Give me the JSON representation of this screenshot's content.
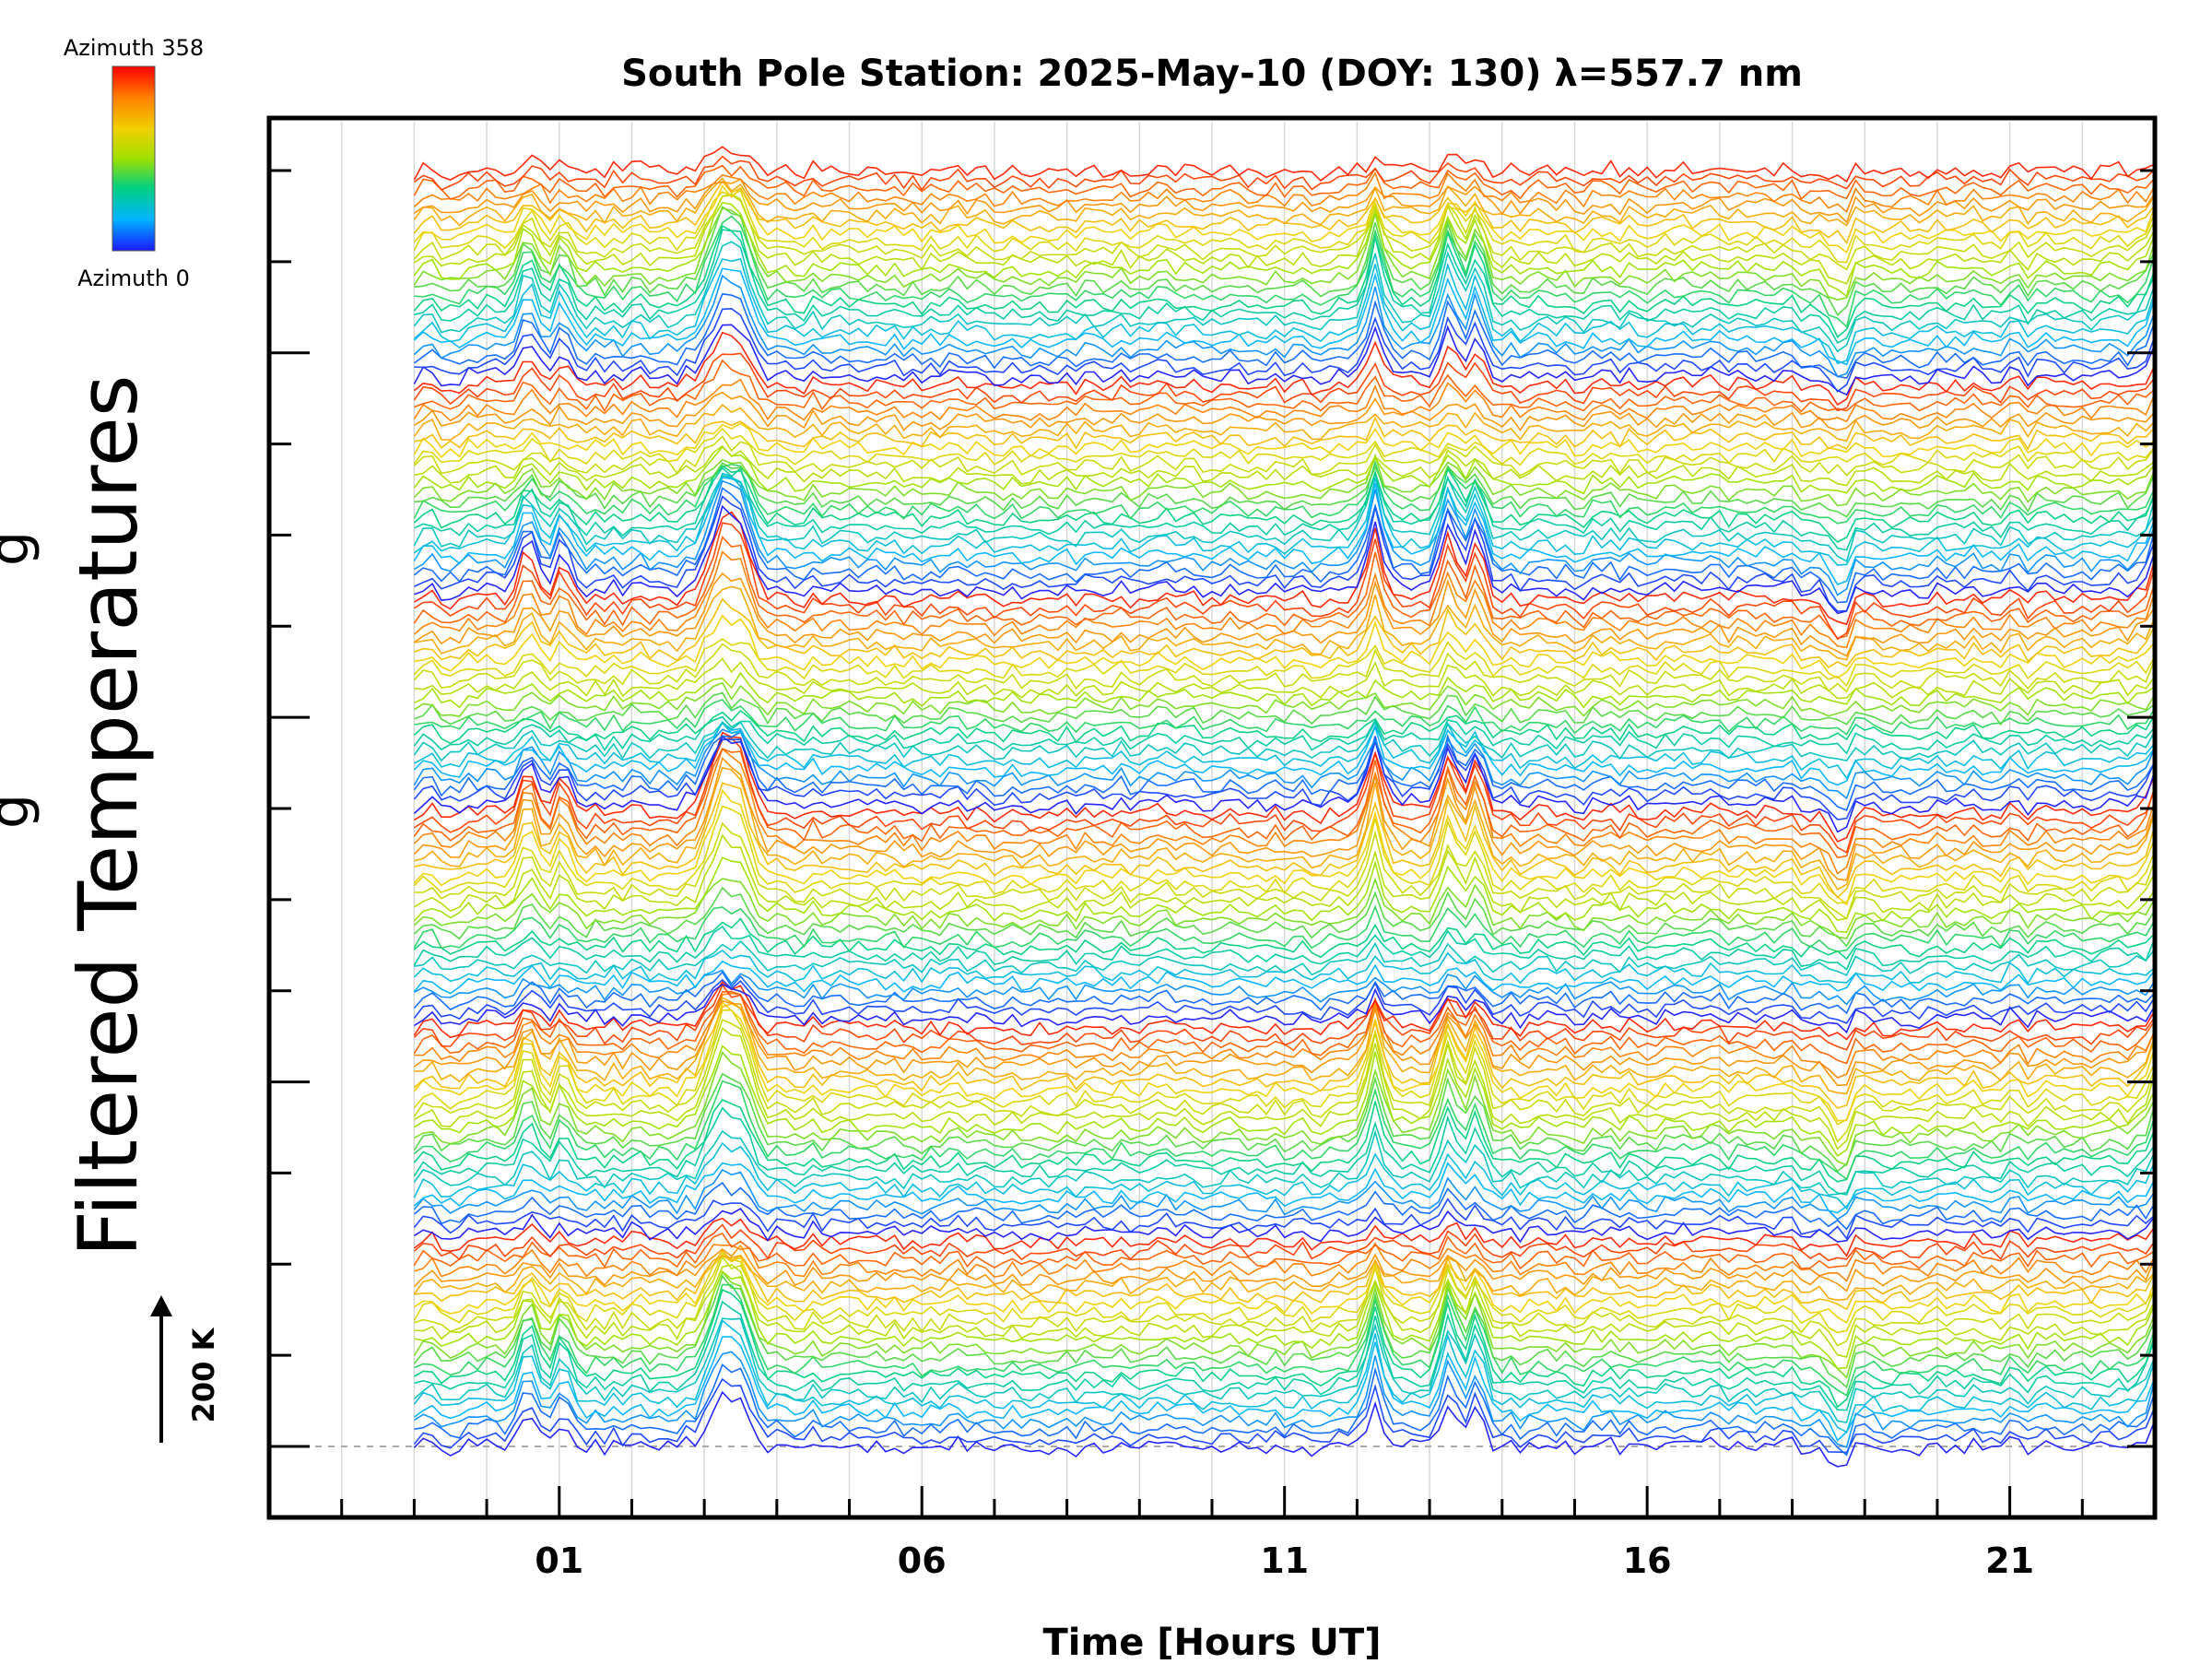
{
  "chart_data": {
    "type": "line",
    "title": "South Pole Station: 2025-May-10 (DOY: 130) λ=557.7 nm",
    "xlabel": "Time [Hours UT]",
    "ylabel": "Filtered Temperatures",
    "ylabel_partial_glyph": "g",
    "x_range_hours": [
      -3,
      23
    ],
    "data_x_range_hours": [
      -1,
      23
    ],
    "x_tick_values": [
      1,
      6,
      11,
      16,
      21
    ],
    "x_tick_labels": [
      "01",
      "06",
      "11",
      "16",
      "21"
    ],
    "x_minor_step_hours": 1,
    "num_traces": 144,
    "azimuth_range": [
      0,
      358
    ],
    "azimuth_color_cycles": 6,
    "scale_bar_label": "200 K",
    "colorbar": {
      "top_label": "Azimuth 358",
      "bottom_label": "Azimuth 0",
      "colors": [
        "#1a1aff",
        "#00b4ff",
        "#00d080",
        "#a0e000",
        "#f0d000",
        "#ff8000",
        "#ff0000"
      ]
    },
    "events": [
      {
        "center_hour": 0.55,
        "amplitude": 55,
        "label": "spike"
      },
      {
        "center_hour": 1.05,
        "amplitude": 45,
        "label": "spike"
      },
      {
        "center_hour": 3.35,
        "amplitude": 90,
        "label": "wave burst"
      },
      {
        "center_hour": 12.25,
        "amplitude": 75,
        "label": "spike"
      },
      {
        "center_hour": 13.25,
        "amplitude": 70,
        "label": "spike"
      },
      {
        "center_hour": 13.65,
        "amplitude": 65,
        "label": "spike"
      },
      {
        "center_hour": 18.65,
        "amplitude": -35,
        "label": "dip"
      },
      {
        "center_hour": 23.0,
        "amplitude": 40,
        "label": "rise"
      }
    ]
  }
}
